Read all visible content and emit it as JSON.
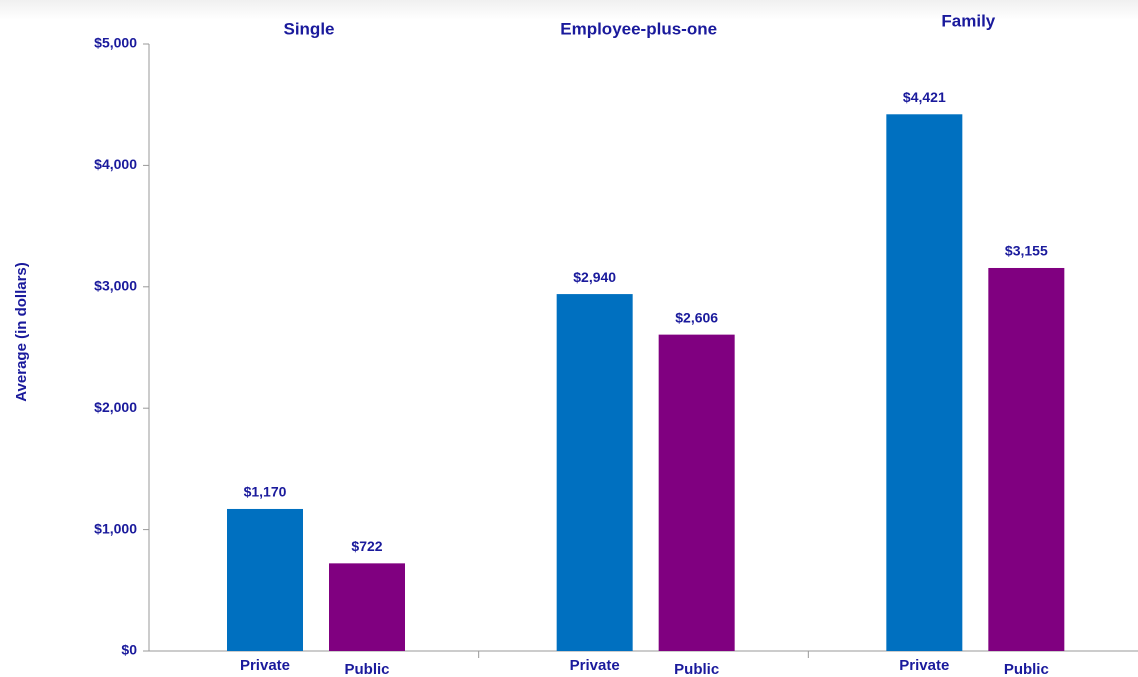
{
  "chart_data": {
    "type": "bar",
    "y_label": "Average (in dollars)",
    "categories": [
      "Single",
      "Employee-plus-one",
      "Family"
    ],
    "series": [
      {
        "name": "Private",
        "color": "#0070c0",
        "values": [
          1170,
          2940,
          4421
        ],
        "value_labels": [
          "$1,170",
          "$2,940",
          "$4,421"
        ]
      },
      {
        "name": "Public",
        "color": "#800080",
        "values": [
          722,
          2606,
          3155
        ],
        "value_labels": [
          "$722",
          "$2,606",
          "$3,155"
        ]
      }
    ],
    "ylim": [
      0,
      5000
    ],
    "yticks": [
      {
        "value": 0,
        "label": "$0"
      },
      {
        "value": 1000,
        "label": "$1,000"
      },
      {
        "value": 2000,
        "label": "$2,000"
      },
      {
        "value": 3000,
        "label": "$3,000"
      },
      {
        "value": 4000,
        "label": "$4,000"
      },
      {
        "value": 5000,
        "label": "$5,000"
      }
    ]
  }
}
